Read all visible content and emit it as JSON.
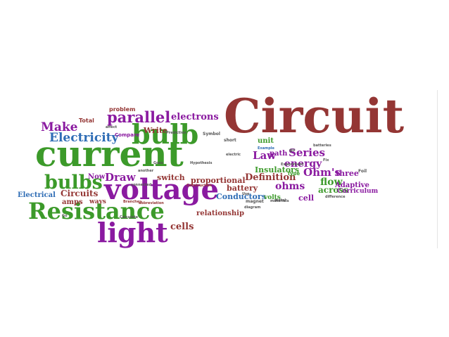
{
  "colors": {
    "red": "#943634",
    "green": "#3c9a2a",
    "purple": "#8a1aa0",
    "blue": "#2f6db5",
    "gray": "#555555"
  },
  "words": [
    {
      "text": "Circuit",
      "color": "red"
    },
    {
      "text": "current",
      "color": "green"
    },
    {
      "text": "voltage",
      "color": "purple"
    },
    {
      "text": "Resistance",
      "color": "green"
    },
    {
      "text": "light",
      "color": "purple"
    },
    {
      "text": "bulb",
      "color": "green"
    },
    {
      "text": "bulbs",
      "color": "green"
    },
    {
      "text": "parallel",
      "color": "purple"
    },
    {
      "text": "Electricity",
      "color": "blue"
    },
    {
      "text": "Make",
      "color": "purple"
    },
    {
      "text": "electrons",
      "color": "purple"
    },
    {
      "text": "Series",
      "color": "purple"
    },
    {
      "text": "Law",
      "color": "purple"
    },
    {
      "text": "energy",
      "color": "purple"
    },
    {
      "text": "Ohm's",
      "color": "purple"
    },
    {
      "text": "flow",
      "color": "green"
    },
    {
      "text": "ohms",
      "color": "purple"
    },
    {
      "text": "across",
      "color": "green"
    },
    {
      "text": "Definition",
      "color": "red"
    },
    {
      "text": "Draw",
      "color": "purple"
    },
    {
      "text": "switch",
      "color": "red"
    },
    {
      "text": "cells",
      "color": "red"
    },
    {
      "text": "Circuits",
      "color": "red"
    },
    {
      "text": "battery",
      "color": "red"
    },
    {
      "text": "proportional",
      "color": "red"
    },
    {
      "text": "Conductors",
      "color": "blue"
    },
    {
      "text": "Insulators",
      "color": "green"
    },
    {
      "text": "relationship",
      "color": "red"
    },
    {
      "text": "Write",
      "color": "red"
    },
    {
      "text": "Electrical",
      "color": "blue"
    },
    {
      "text": "amps",
      "color": "red"
    },
    {
      "text": "ways",
      "color": "red"
    },
    {
      "text": "Now",
      "color": "purple"
    },
    {
      "text": "cell",
      "color": "purple"
    },
    {
      "text": "three",
      "color": "purple"
    },
    {
      "text": "Adaptive",
      "color": "purple"
    },
    {
      "text": "Curriculum",
      "color": "purple"
    },
    {
      "text": "unit",
      "color": "green"
    },
    {
      "text": "path",
      "color": "purple"
    },
    {
      "text": "volts",
      "color": "green"
    },
    {
      "text": "Total",
      "color": "red"
    },
    {
      "text": "problem",
      "color": "red"
    },
    {
      "text": "Compare",
      "color": "purple"
    },
    {
      "text": "Symbol",
      "color": "gray"
    },
    {
      "text": "short",
      "color": "gray"
    },
    {
      "text": "Example",
      "color": "blue"
    },
    {
      "text": "Type",
      "color": "green"
    },
    {
      "text": "Construction",
      "color": "red"
    },
    {
      "text": "Branches",
      "color": "red"
    },
    {
      "text": "abbreviation",
      "color": "red"
    },
    {
      "text": "Experiment",
      "color": "gray"
    },
    {
      "text": "another",
      "color": "gray"
    },
    {
      "text": "Goes",
      "color": "gray"
    },
    {
      "text": "Use",
      "color": "gray"
    },
    {
      "text": "magnet",
      "color": "gray"
    },
    {
      "text": "diagram",
      "color": "gray"
    },
    {
      "text": "materials",
      "color": "gray"
    },
    {
      "text": "Foil",
      "color": "gray"
    },
    {
      "text": "Fix",
      "color": "gray"
    },
    {
      "text": "Go",
      "color": "gray"
    },
    {
      "text": "go",
      "color": "gray"
    },
    {
      "text": "metal",
      "color": "gray"
    },
    {
      "text": "electric",
      "color": "gray"
    },
    {
      "text": "batteries",
      "color": "gray"
    },
    {
      "text": "affect",
      "color": "gray"
    },
    {
      "text": "Prediction",
      "color": "gray"
    },
    {
      "text": "Calculate",
      "color": "gray"
    },
    {
      "text": "Hypothesis",
      "color": "gray"
    },
    {
      "text": "connected",
      "color": "gray"
    },
    {
      "text": "difference",
      "color": "gray"
    }
  ]
}
